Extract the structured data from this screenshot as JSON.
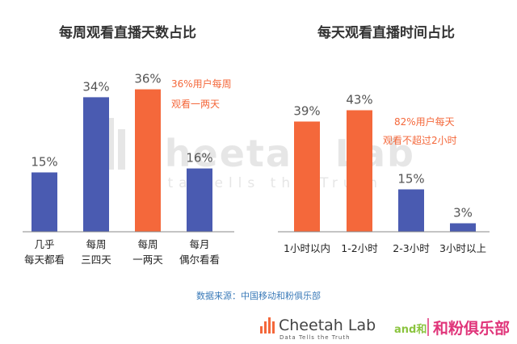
{
  "chart_data": [
    {
      "type": "bar",
      "title": "每周观看直播天数占比",
      "categories": [
        [
          "几乎",
          "每天都看"
        ],
        [
          "每周",
          "三四天"
        ],
        [
          "每周",
          "一两天"
        ],
        [
          "每月",
          "偶尔看看"
        ]
      ],
      "values": [
        15,
        34,
        36,
        16
      ],
      "value_labels": [
        "15%",
        "34%",
        "36%",
        "16%"
      ],
      "highlight_index": 2,
      "ylim": [
        0,
        40
      ],
      "annotation": [
        "36%用户每周",
        "观看一两天"
      ]
    },
    {
      "type": "bar",
      "title": "每天观看直播时间占比",
      "categories": [
        [
          "1小时以内"
        ],
        [
          "1-2小时"
        ],
        [
          "2-3小时"
        ],
        [
          "3小时以上"
        ]
      ],
      "values": [
        39,
        43,
        15,
        3
      ],
      "value_labels": [
        "39%",
        "43%",
        "15%",
        "3%"
      ],
      "highlight_index": [
        0,
        1
      ],
      "ylim": [
        0,
        48
      ],
      "annotation": [
        "82%用户每天",
        "观看不超过2小时"
      ]
    }
  ],
  "colors": {
    "blue": "#4a5bb1",
    "orange": "#f4683b",
    "axis": "#888888",
    "source": "#3a7ab8",
    "partner_green": "#8bc43f",
    "partner_pink": "#e0357a"
  },
  "watermark": {
    "title": "Cheetah Lab",
    "slogan": "Data Tells the Truth"
  },
  "source_text": "数据来源：中国移动和粉俱乐部",
  "logos": {
    "cheetah_name": "Cheetah Lab",
    "cheetah_slogan": "Data Tells the Truth",
    "partner_prefix": "and和",
    "partner_name": "和粉俱乐部"
  }
}
